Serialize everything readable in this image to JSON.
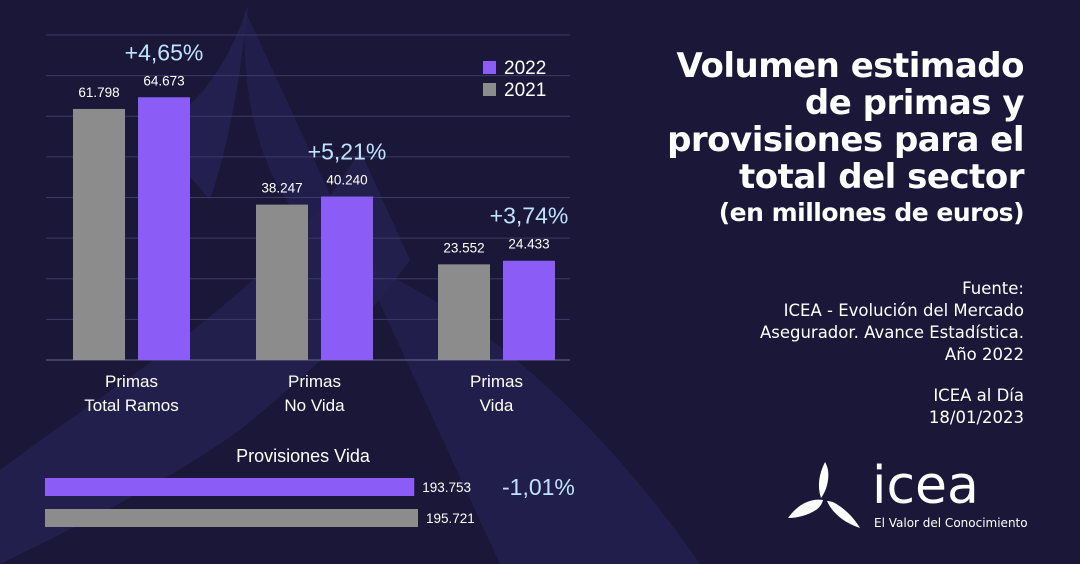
{
  "colors": {
    "background": "#1a1738",
    "series_2022": "#8b5cf6",
    "series_2021": "#8c8c8c",
    "change": "#bfe3ff"
  },
  "title_lines": [
    "Volumen estimado",
    "de primas y",
    "provisiones para el",
    "total del sector"
  ],
  "subtitle": "(en millones de euros)",
  "source": {
    "label": "Fuente:",
    "lines": [
      "ICEA - Evolución del Mercado",
      "Asegurador. Avance Estadística.",
      "Año 2022"
    ]
  },
  "publication": {
    "name": "ICEA al Día",
    "date": "18/01/2023"
  },
  "logo": {
    "icon": "icea-logo-icon",
    "name": "icea",
    "tagline": "El Valor del Conocimiento"
  },
  "chart_data": [
    {
      "type": "bar",
      "categories": [
        [
          "Primas",
          "Total Ramos"
        ],
        [
          "Primas",
          "No Vida"
        ],
        [
          "Primas",
          "Vida"
        ]
      ],
      "series": [
        {
          "name": "2021",
          "values": [
            61798,
            38247,
            23552
          ],
          "labels": [
            "61.798",
            "38.247",
            "23.552"
          ]
        },
        {
          "name": "2022",
          "values": [
            64673,
            40240,
            24433
          ],
          "labels": [
            "64.673",
            "40.240",
            "24.433"
          ]
        }
      ],
      "changes": [
        "+4,65%",
        "+5,21%",
        "+3,74%"
      ],
      "ylim": [
        0,
        80000
      ],
      "grid": true,
      "legend_position": "top-right"
    },
    {
      "type": "bar",
      "orientation": "horizontal",
      "title": "Provisiones Vida",
      "series": [
        {
          "name": "2022",
          "value": 193753,
          "label": "193.753"
        },
        {
          "name": "2021",
          "value": 195721,
          "label": "195.721"
        }
      ],
      "change": "-1,01%",
      "xlim": [
        0,
        200000
      ]
    }
  ]
}
